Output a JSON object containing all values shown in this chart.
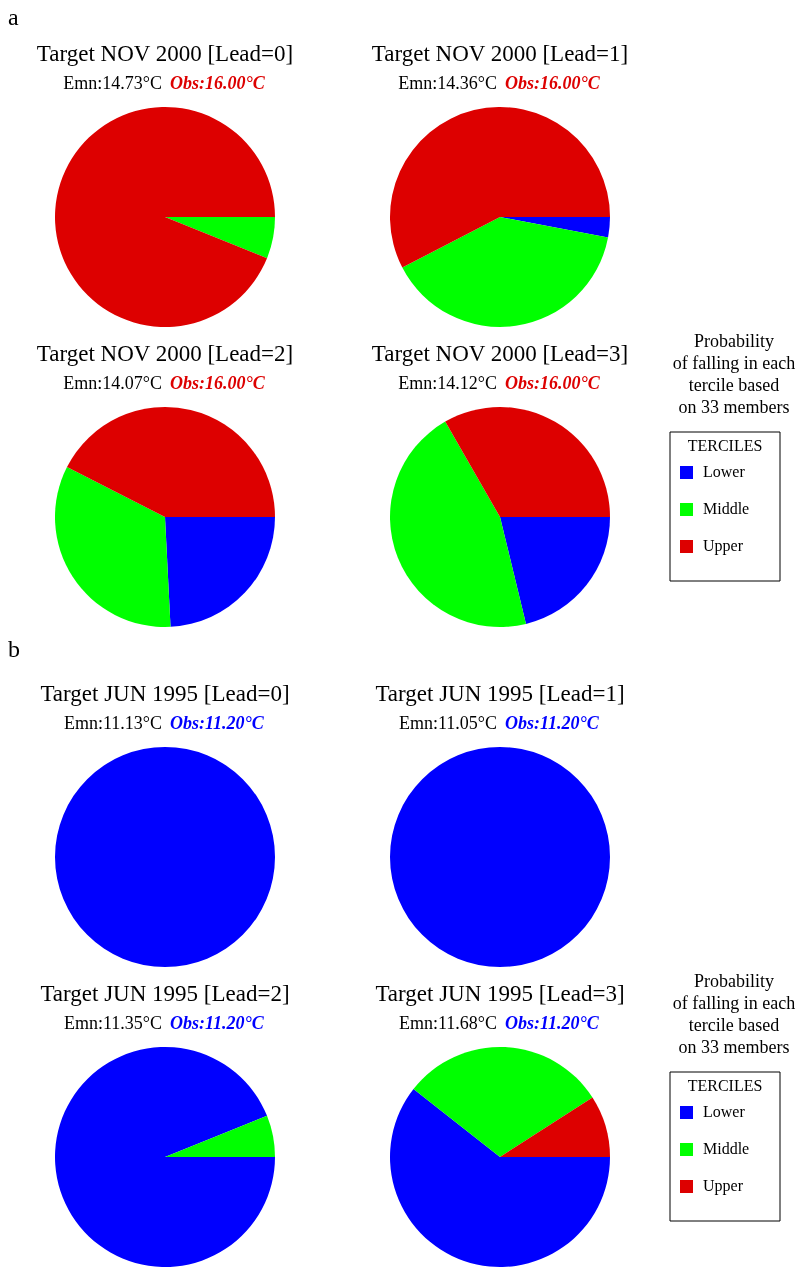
{
  "chart_data": [
    {
      "type": "pie",
      "title": "Target NOV 2000 [Lead=0]",
      "subtitle": [
        "Emn:14.73°C",
        "Obs:16.00°C"
      ],
      "annotations": [
        "a"
      ],
      "categories": [
        null,
        null,
        null
      ],
      "values": [
        0,
        6.1,
        93.9
      ],
      "colors": [
        "#0000ff",
        "#00ff00",
        "#dd0000"
      ]
    },
    {
      "type": "pie",
      "title": "Target NOV 2000 [Lead=1]",
      "subtitle": [
        "Emn:14.36°C",
        "Obs:16.00°C"
      ],
      "categories": [
        null,
        null,
        null
      ],
      "values": [
        3.0,
        39.4,
        57.6
      ],
      "colors": [
        "#0000ff",
        "#00ff00",
        "#dd0000"
      ]
    },
    {
      "type": "pie",
      "title": "Target NOV 2000 [Lead=2]",
      "subtitle": [
        "Emn:14.07°C",
        "Obs:16.00°C"
      ],
      "categories": [
        null,
        null,
        null
      ],
      "values": [
        24.2,
        33.3,
        42.5
      ],
      "colors": [
        "#0000ff",
        "#00ff00",
        "#dd0000"
      ]
    },
    {
      "type": "pie",
      "title": "Target NOV 2000 [Lead=3]",
      "subtitle": [
        "Emn:14.12°C",
        "Obs:16.00°C"
      ],
      "annotations": [
        "Probability",
        "of falling in each",
        "tercile based",
        "on 33 members"
      ],
      "legend": "right",
      "legend_title": "TERCILES",
      "categories": [
        "Lower",
        "Middle",
        "Upper"
      ],
      "values": [
        21.2,
        45.5,
        33.3
      ],
      "colors": [
        "#0000ff",
        "#00ff00",
        "#dd0000"
      ]
    },
    {
      "type": "pie",
      "title": "Target JUN 1995 [Lead=0]",
      "subtitle": [
        "Emn:11.13°C",
        "Obs:11.20°C"
      ],
      "annotations": [
        "b"
      ],
      "categories": [
        null,
        null,
        null
      ],
      "values": [
        100,
        0,
        0
      ],
      "colors": [
        "#0000ff",
        "#00ff00",
        "#dd0000"
      ]
    },
    {
      "type": "pie",
      "title": "Target JUN 1995 [Lead=1]",
      "subtitle": [
        "Emn:11.05°C",
        "Obs:11.20°C"
      ],
      "categories": [
        null,
        null,
        null
      ],
      "values": [
        100,
        0,
        0
      ],
      "colors": [
        "#0000ff",
        "#00ff00",
        "#dd0000"
      ]
    },
    {
      "type": "pie",
      "title": "Target JUN 1995 [Lead=2]",
      "subtitle": [
        "Emn:11.35°C",
        "Obs:11.20°C"
      ],
      "categories": [
        null,
        null,
        null
      ],
      "values": [
        93.9,
        6.1,
        0
      ],
      "colors": [
        "#0000ff",
        "#00ff00",
        "#dd0000"
      ]
    },
    {
      "type": "pie",
      "title": "Target JUN 1995 [Lead=3]",
      "subtitle": [
        "Emn:11.68°C",
        "Obs:11.20°C"
      ],
      "annotations": [
        "Probability",
        "of falling in each",
        "tercile based",
        "on 33 members"
      ],
      "legend": "right",
      "legend_title": "TERCILES",
      "categories": [
        "Lower",
        "Middle",
        "Upper"
      ],
      "values": [
        60.6,
        30.3,
        9.1
      ],
      "colors": [
        "#0000ff",
        "#00ff00",
        "#dd0000"
      ]
    }
  ]
}
